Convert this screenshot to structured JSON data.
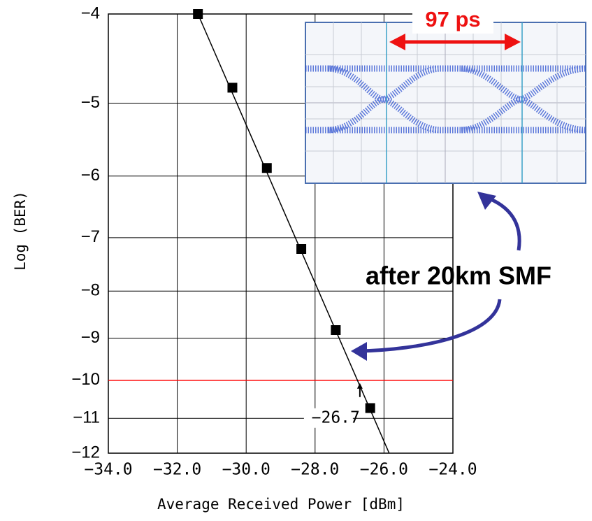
{
  "chart_data": {
    "type": "scatter",
    "x_label": "Average Received Power [dBm]",
    "y_label": "Log (BER)",
    "xlim": [
      -34,
      -24
    ],
    "ylim": [
      -12,
      -4
    ],
    "yscale": "log-negative",
    "grid": true,
    "xticks": [
      {
        "value": -34,
        "label": "−34.0"
      },
      {
        "value": -32,
        "label": "−32.0"
      },
      {
        "value": -30,
        "label": "−30.0"
      },
      {
        "value": -28,
        "label": "−28.0"
      },
      {
        "value": -26,
        "label": "−26.0"
      },
      {
        "value": -24,
        "label": "−24.0"
      }
    ],
    "yticks": [
      {
        "value": -4,
        "label": "−4"
      },
      {
        "value": -5,
        "label": "−5"
      },
      {
        "value": -6,
        "label": "−6"
      },
      {
        "value": -7,
        "label": "−7"
      },
      {
        "value": -8,
        "label": "−8"
      },
      {
        "value": -9,
        "label": "−9"
      },
      {
        "value": -10,
        "label": "−10"
      },
      {
        "value": -11,
        "label": "−11"
      },
      {
        "value": -12,
        "label": "−12"
      }
    ],
    "series": [
      {
        "color": "#000000",
        "x": [
          -31.4,
          -30.4,
          -29.4,
          -28.4,
          -27.4,
          -26.4
        ],
        "values": [
          -4.0,
          -4.81,
          -5.88,
          -7.2,
          -8.82,
          -10.72
        ]
      }
    ],
    "fit": {
      "color": "#000000",
      "x": [
        -31.4,
        -25.85
      ],
      "values": [
        -4,
        -12
      ]
    },
    "threshold": {
      "value": -10,
      "color": "#ff0000"
    },
    "annotations": [
      {
        "x": {
          "value": -26.7,
          "label": "−26.7"
        },
        "y": -10
      },
      {
        "text": "after 20km SMF"
      },
      {
        "text": "97 ps"
      }
    ]
  }
}
